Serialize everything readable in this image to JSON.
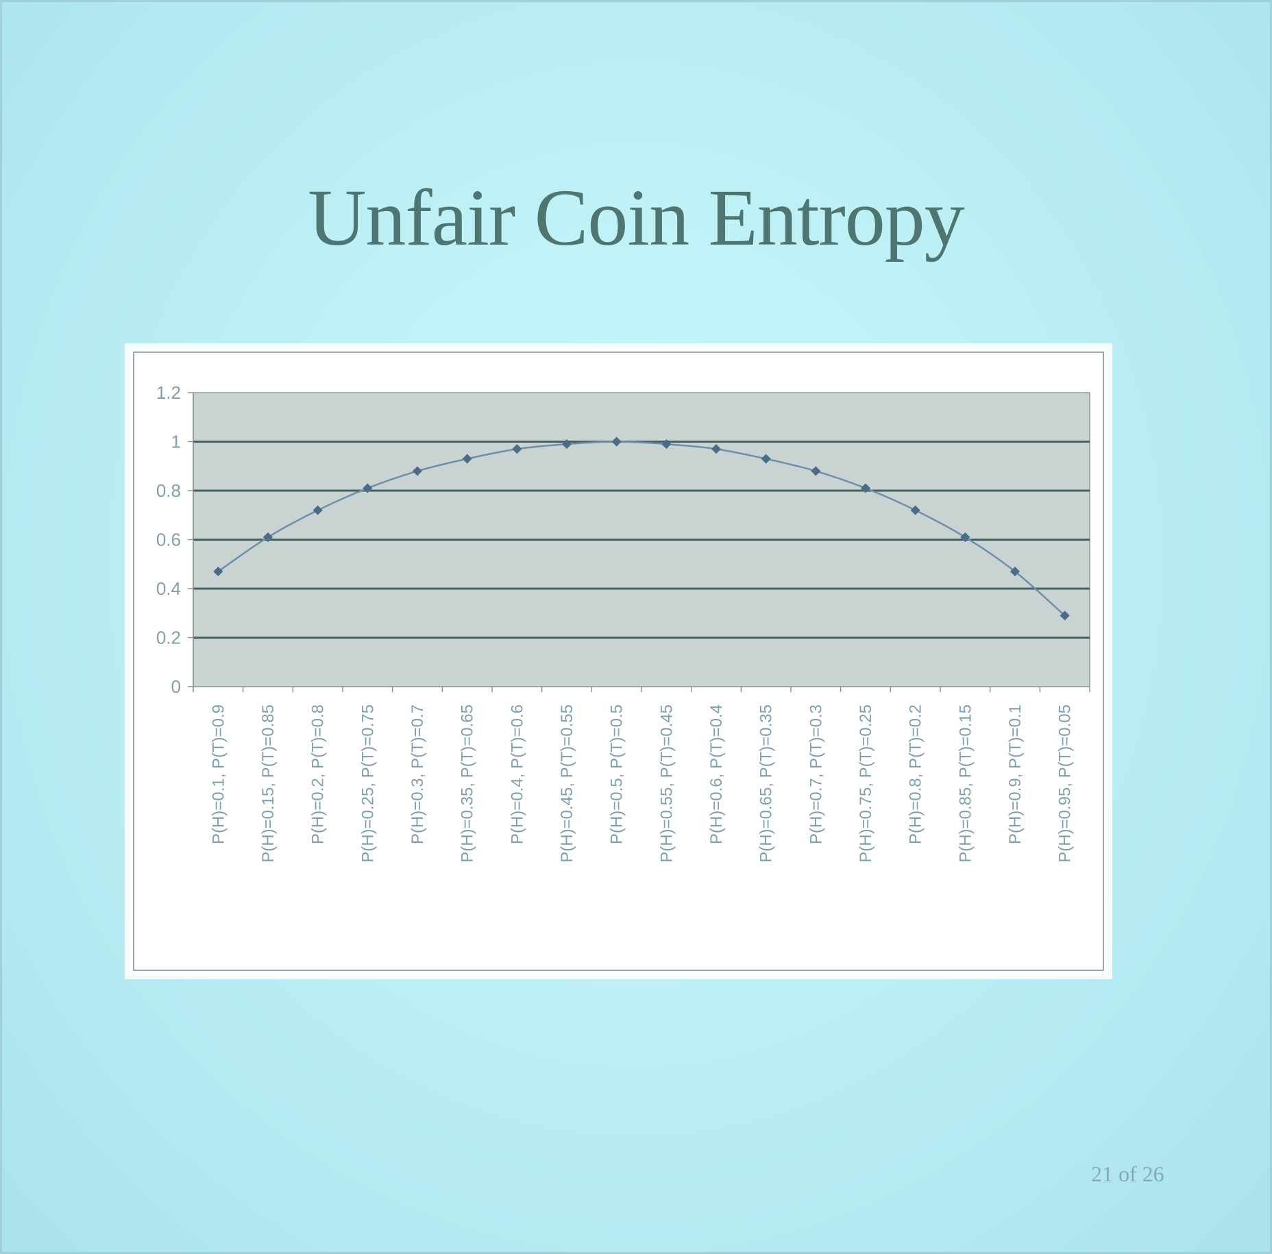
{
  "slide": {
    "title": "Unfair Coin Entropy",
    "page_number": "21 of 26",
    "colors": {
      "background": "#bdf0f6",
      "title": "#4f7570",
      "plot_area": "#c9d3d2",
      "gridline": "#45615f",
      "series_line": "#6e8fa8",
      "marker": "#4c6b86",
      "axis_text": "#7fa0b0"
    }
  },
  "chart_data": {
    "type": "line",
    "title": "",
    "xlabel": "",
    "ylabel": "",
    "ylim": [
      0,
      1.2
    ],
    "yticks": [
      "0",
      "0.2",
      "0.4",
      "0.6",
      "0.8",
      "1",
      "1.2"
    ],
    "grid": true,
    "legend": "none",
    "markers": true,
    "smooth": true,
    "categories": [
      "P(H)=0.1, P(T)=0.9",
      "P(H)=0.15, P(T)=0.85",
      "P(H)=0.2, P(T)=0.8",
      "P(H)=0.25, P(T)=0.75",
      "P(H)=0.3, P(T)=0.7",
      "P(H)=0.35, P(T)=0.65",
      "P(H)=0.4, P(T)=0.6",
      "P(H)=0.45, P(T)=0.55",
      "P(H)=0.5, P(T)=0.5",
      "P(H)=0.55, P(T)=0.45",
      "P(H)=0.6, P(T)=0.4",
      "P(H)=0.65, P(T)=0.35",
      "P(H)=0.7, P(T)=0.3",
      "P(H)=0.75, P(T)=0.25",
      "P(H)=0.8, P(T)=0.2",
      "P(H)=0.85, P(T)=0.15",
      "P(H)=0.9, P(T)=0.1",
      "P(H)=0.95, P(T)=0.05"
    ],
    "series": [
      {
        "values": [
          0.47,
          0.61,
          0.72,
          0.81,
          0.88,
          0.93,
          0.97,
          0.99,
          1.0,
          0.99,
          0.97,
          0.93,
          0.88,
          0.81,
          0.72,
          0.61,
          0.47,
          0.29
        ]
      }
    ]
  }
}
